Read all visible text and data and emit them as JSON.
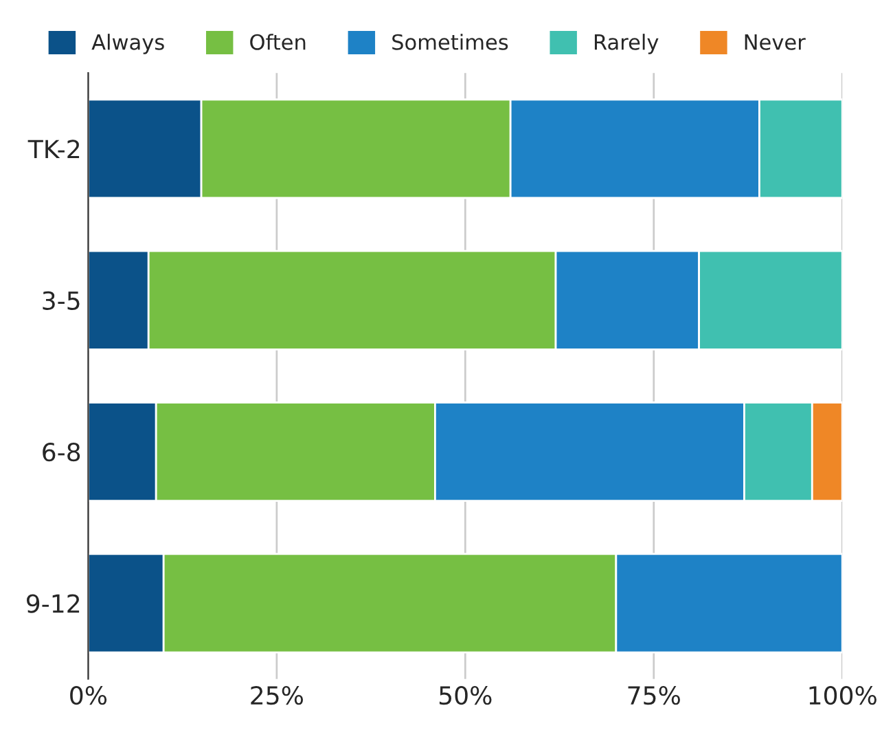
{
  "chart_data": {
    "type": "bar",
    "orientation": "horizontal",
    "stacked": true,
    "categories": [
      "TK-2",
      "3-5",
      "6-8",
      "9-12"
    ],
    "series": [
      {
        "name": "Always",
        "color": "#0b5289",
        "values": [
          15,
          8,
          9,
          10
        ]
      },
      {
        "name": "Often",
        "color": "#76bf43",
        "values": [
          41,
          54,
          37,
          60
        ]
      },
      {
        "name": "Sometimes",
        "color": "#1e82c6",
        "values": [
          33,
          19,
          41,
          30
        ]
      },
      {
        "name": "Rarely",
        "color": "#40c0b0",
        "values": [
          11,
          19,
          9,
          null
        ]
      },
      {
        "name": "Never",
        "color": "#ef8726",
        "values": [
          null,
          null,
          4,
          null
        ]
      }
    ],
    "xlim": [
      0,
      100
    ],
    "xticks": [
      {
        "value": 0,
        "label": "0%"
      },
      {
        "value": 25,
        "label": "25%"
      },
      {
        "value": 50,
        "label": "50%"
      },
      {
        "value": 75,
        "label": "75%"
      },
      {
        "value": 100,
        "label": "100%"
      }
    ],
    "grid": "x",
    "legend": "top"
  }
}
